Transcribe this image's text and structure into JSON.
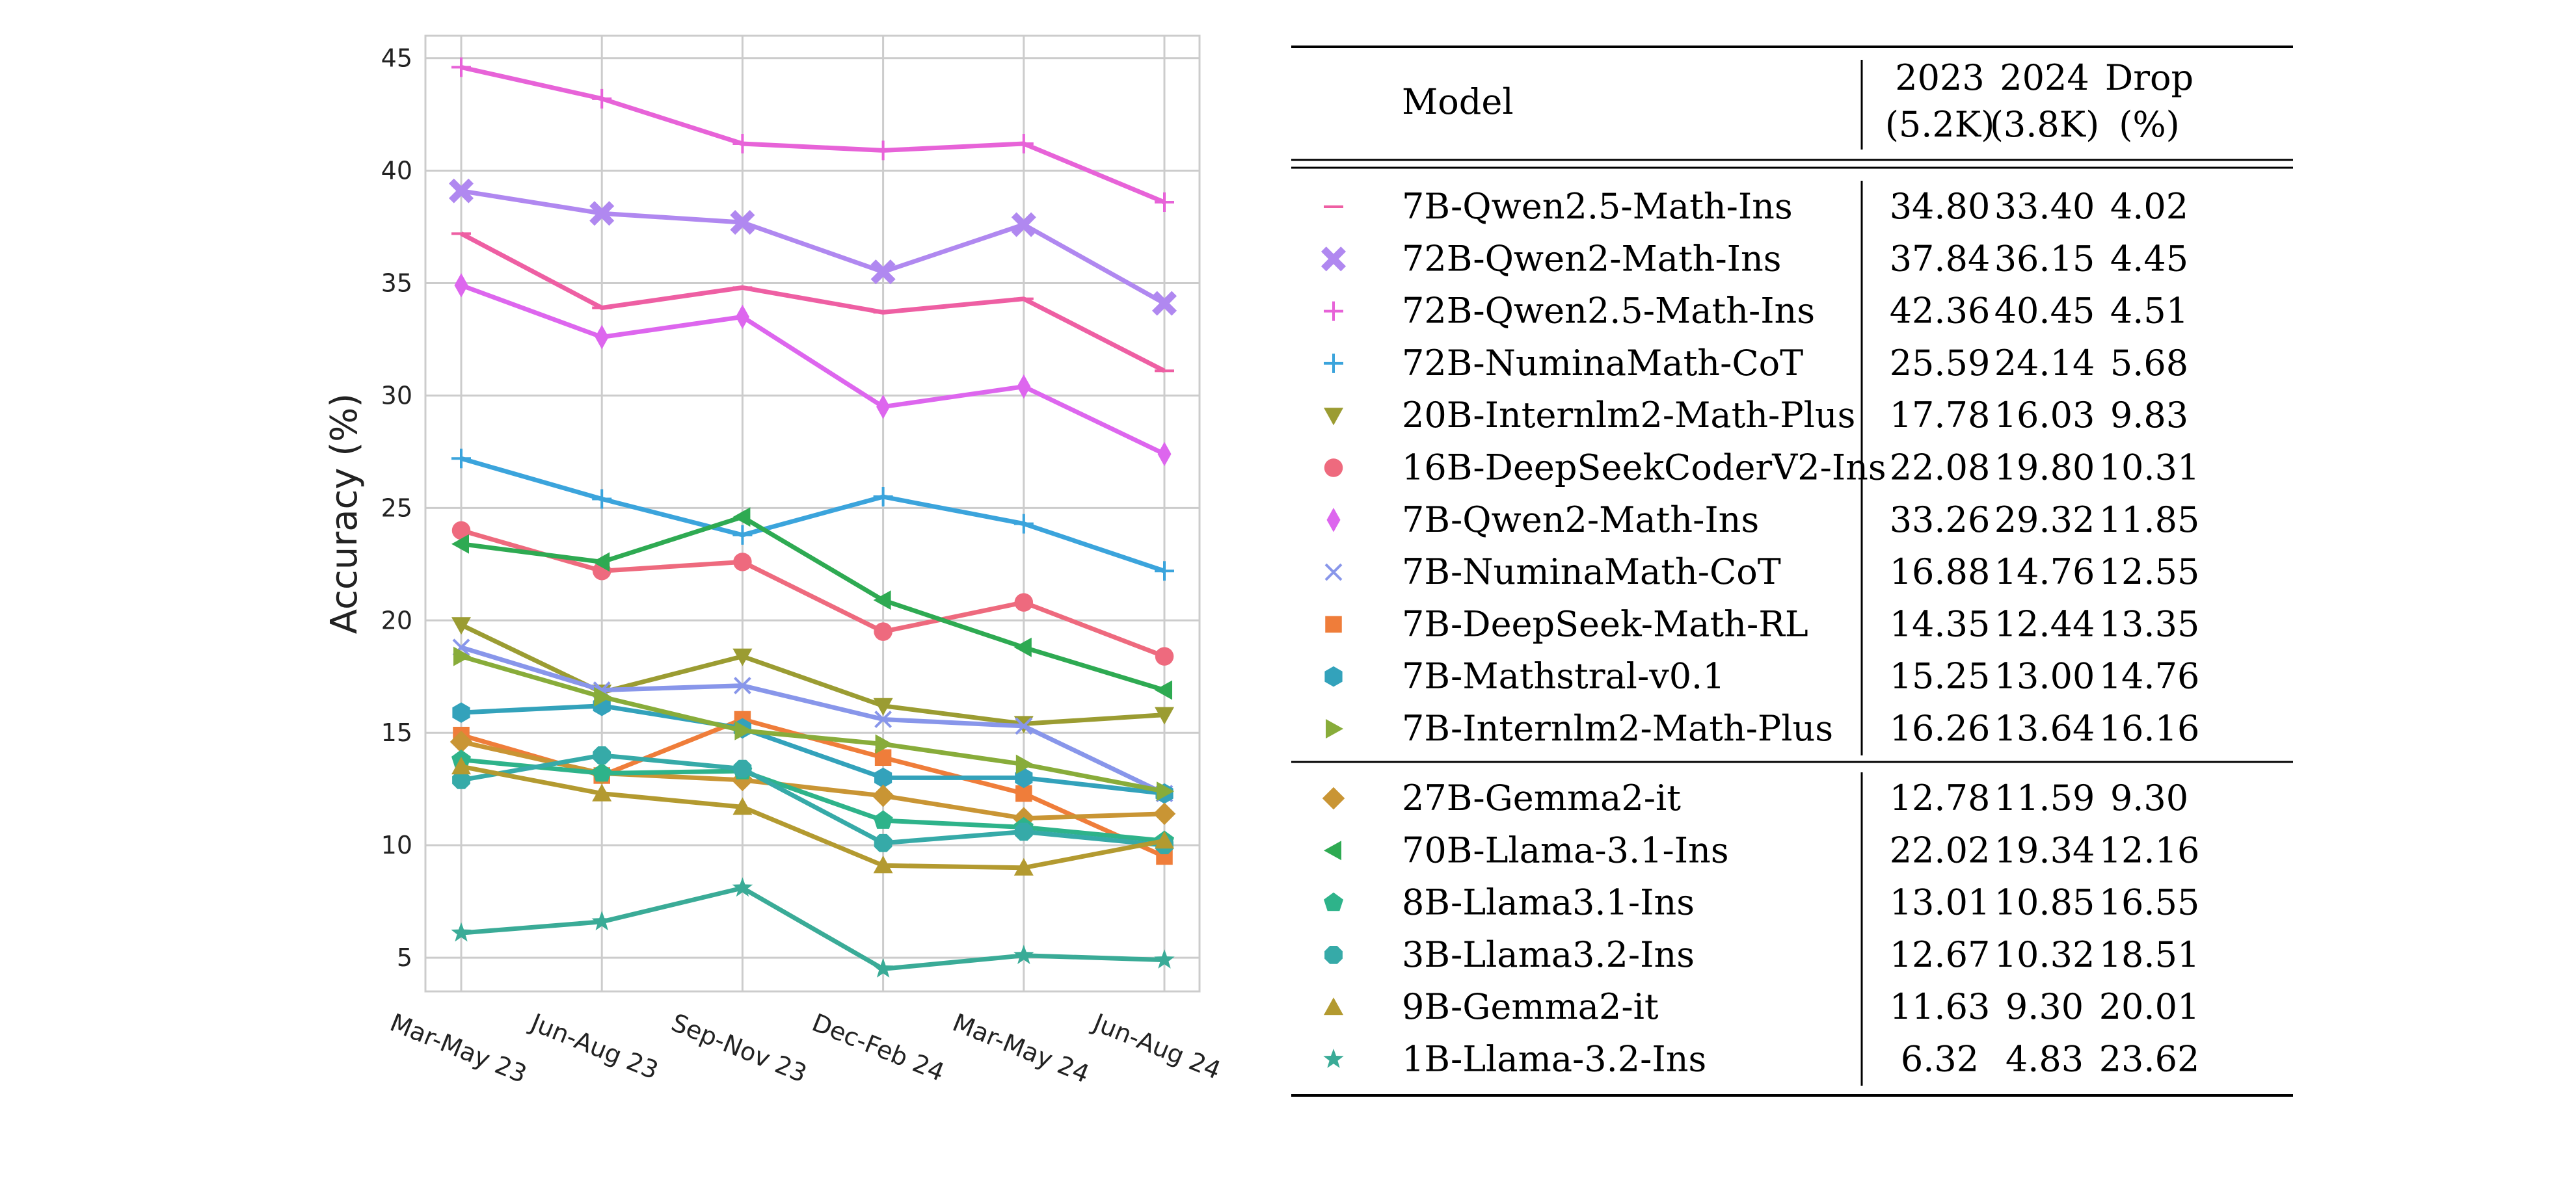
{
  "chart_data": [
    {
      "type": "line",
      "xlabel": "",
      "ylabel": "Accuracy (%)",
      "ylim": [
        3.5,
        46
      ],
      "yticks": [
        5,
        10,
        15,
        20,
        25,
        30,
        35,
        40,
        45
      ],
      "categories": [
        "Mar-May 23",
        "Jun-Aug 23",
        "Sep-Nov 23",
        "Dec-Feb 24",
        "Mar-May 24",
        "Jun-Aug 24"
      ],
      "grid": true,
      "series": [
        {
          "name": "7B-Qwen2.5-Math-Ins",
          "color": "#ee5fa3",
          "marker": "hline",
          "values": [
            37.2,
            33.9,
            34.8,
            33.7,
            34.3,
            31.1
          ]
        },
        {
          "name": "72B-Qwen2-Math-Ins",
          "color": "#b088f0",
          "marker": "X",
          "values": [
            39.1,
            38.1,
            37.7,
            35.5,
            37.6,
            34.1
          ]
        },
        {
          "name": "72B-Qwen2.5-Math-Ins",
          "color": "#e763d8",
          "marker": "plus",
          "values": [
            44.6,
            43.2,
            41.2,
            40.9,
            41.2,
            38.6
          ]
        },
        {
          "name": "72B-NuminaMath-CoT",
          "color": "#3ba4dc",
          "marker": "plus",
          "values": [
            27.2,
            25.4,
            23.8,
            25.5,
            24.3,
            22.2
          ]
        },
        {
          "name": "20B-Internlm2-Math-Plus",
          "color": "#9b9c32",
          "marker": "tri_down",
          "values": [
            19.8,
            16.8,
            18.4,
            16.2,
            15.4,
            15.8
          ]
        },
        {
          "name": "16B-DeepSeekCoderV2-Ins",
          "color": "#ee6a7e",
          "marker": "circle",
          "values": [
            24.0,
            22.2,
            22.6,
            19.5,
            20.8,
            18.4
          ]
        },
        {
          "name": "7B-Qwen2-Math-Ins",
          "color": "#dd66ee",
          "marker": "thin_diamond",
          "values": [
            34.9,
            32.6,
            33.5,
            29.5,
            30.4,
            27.4
          ]
        },
        {
          "name": "7B-NuminaMath-CoT",
          "color": "#8896ea",
          "marker": "x",
          "values": [
            18.8,
            16.9,
            17.1,
            15.6,
            15.3,
            12.3
          ]
        },
        {
          "name": "7B-DeepSeek-Math-RL",
          "color": "#ef7d3a",
          "marker": "square",
          "values": [
            14.9,
            13.1,
            15.6,
            13.9,
            12.3,
            9.5
          ]
        },
        {
          "name": "7B-Mathstral-v0.1",
          "color": "#33a2bb",
          "marker": "hexagon",
          "values": [
            15.9,
            16.2,
            15.2,
            13.0,
            13.0,
            12.3
          ]
        },
        {
          "name": "7B-Internlm2-Math-Plus",
          "color": "#88ac3a",
          "marker": "tri_right",
          "values": [
            18.4,
            16.6,
            15.1,
            14.5,
            13.6,
            12.4
          ]
        },
        {
          "name": "27B-Gemma2-it",
          "color": "#c99534",
          "marker": "diamond",
          "values": [
            14.6,
            13.2,
            12.9,
            12.2,
            11.2,
            11.4
          ]
        },
        {
          "name": "70B-Llama-3.1-Ins",
          "color": "#2eaa52",
          "marker": "tri_left",
          "values": [
            23.4,
            22.6,
            24.6,
            20.9,
            18.8,
            16.9
          ]
        },
        {
          "name": "8B-Llama3.1-Ins",
          "color": "#2eb38a",
          "marker": "pentagon",
          "values": [
            13.8,
            13.2,
            13.3,
            11.1,
            10.8,
            10.2
          ]
        },
        {
          "name": "3B-Llama3.2-Ins",
          "color": "#36aaa8",
          "marker": "octagon",
          "values": [
            12.9,
            14.0,
            13.4,
            10.1,
            10.6,
            10.0
          ]
        },
        {
          "name": "9B-Gemma2-it",
          "color": "#b39a30",
          "marker": "tri_up",
          "values": [
            13.5,
            12.3,
            11.7,
            9.1,
            9.0,
            10.2
          ]
        },
        {
          "name": "1B-Llama-3.2-Ins",
          "color": "#3aab97",
          "marker": "star",
          "values": [
            6.1,
            6.6,
            8.1,
            4.5,
            5.1,
            4.9
          ]
        }
      ]
    },
    {
      "type": "table",
      "header": {
        "model": "Model",
        "col2023": [
          "2023",
          "(5.2K)"
        ],
        "col2024": [
          "2024",
          "(3.8K)"
        ],
        "drop": [
          "Drop",
          "(%)"
        ]
      },
      "groups": [
        {
          "rows": [
            {
              "model": "7B-Qwen2.5-Math-Ins",
              "y2023": "34.80",
              "y2024": "33.40",
              "drop": "4.02"
            },
            {
              "model": "72B-Qwen2-Math-Ins",
              "y2023": "37.84",
              "y2024": "36.15",
              "drop": "4.45"
            },
            {
              "model": "72B-Qwen2.5-Math-Ins",
              "y2023": "42.36",
              "y2024": "40.45",
              "drop": "4.51"
            },
            {
              "model": "72B-NuminaMath-CoT",
              "y2023": "25.59",
              "y2024": "24.14",
              "drop": "5.68"
            },
            {
              "model": "20B-Internlm2-Math-Plus",
              "y2023": "17.78",
              "y2024": "16.03",
              "drop": "9.83"
            },
            {
              "model": "16B-DeepSeekCoderV2-Ins",
              "y2023": "22.08",
              "y2024": "19.80",
              "drop": "10.31"
            },
            {
              "model": "7B-Qwen2-Math-Ins",
              "y2023": "33.26",
              "y2024": "29.32",
              "drop": "11.85"
            },
            {
              "model": "7B-NuminaMath-CoT",
              "y2023": "16.88",
              "y2024": "14.76",
              "drop": "12.55"
            },
            {
              "model": "7B-DeepSeek-Math-RL",
              "y2023": "14.35",
              "y2024": "12.44",
              "drop": "13.35"
            },
            {
              "model": "7B-Mathstral-v0.1",
              "y2023": "15.25",
              "y2024": "13.00",
              "drop": "14.76"
            },
            {
              "model": "7B-Internlm2-Math-Plus",
              "y2023": "16.26",
              "y2024": "13.64",
              "drop": "16.16"
            }
          ]
        },
        {
          "rows": [
            {
              "model": "27B-Gemma2-it",
              "y2023": "12.78",
              "y2024": "11.59",
              "drop": "9.30"
            },
            {
              "model": "70B-Llama-3.1-Ins",
              "y2023": "22.02",
              "y2024": "19.34",
              "drop": "12.16"
            },
            {
              "model": "8B-Llama3.1-Ins",
              "y2023": "13.01",
              "y2024": "10.85",
              "drop": "16.55"
            },
            {
              "model": "3B-Llama3.2-Ins",
              "y2023": "12.67",
              "y2024": "10.32",
              "drop": "18.51"
            },
            {
              "model": "9B-Gemma2-it",
              "y2023": "11.63",
              "y2024": "9.30",
              "drop": "20.01"
            },
            {
              "model": "1B-Llama-3.2-Ins",
              "y2023": "6.32",
              "y2024": "4.83",
              "drop": "23.62"
            }
          ]
        }
      ]
    }
  ]
}
